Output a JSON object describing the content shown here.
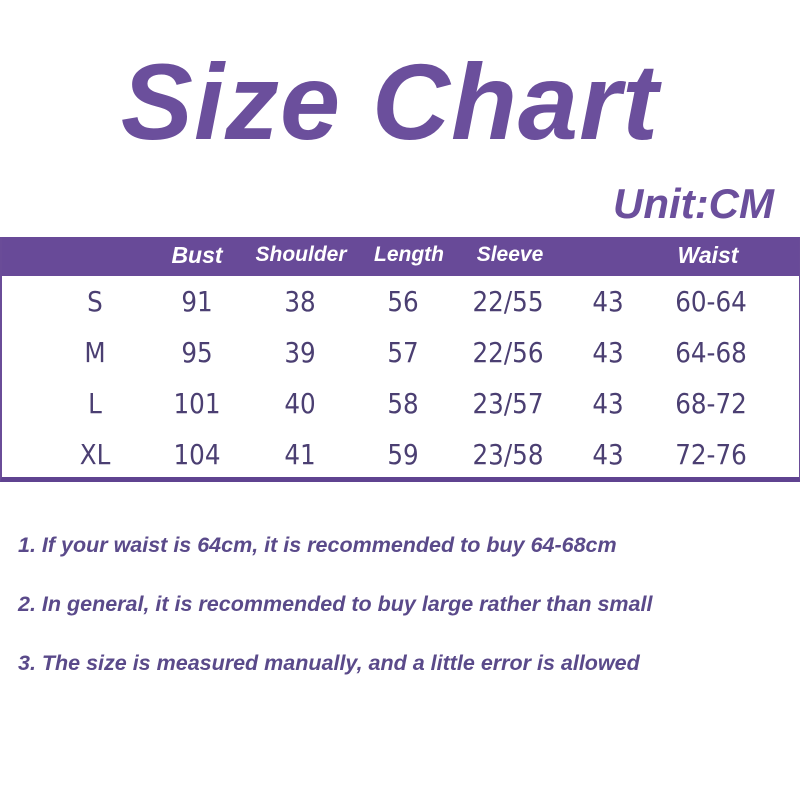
{
  "title": "Size Chart",
  "unit": "Unit:CM",
  "colors": {
    "accent": "#684a98",
    "text": "#4b3f72"
  },
  "table": {
    "headers": [
      "",
      "Bust",
      "Shoulder",
      "Length",
      "Sleeve",
      "",
      "Waist"
    ],
    "rows": [
      [
        "S",
        "91",
        "38",
        "56",
        "22/55",
        "43",
        "60-64"
      ],
      [
        "M",
        "95",
        "39",
        "57",
        "22/56",
        "43",
        "64-68"
      ],
      [
        "L",
        "101",
        "40",
        "58",
        "23/57",
        "43",
        "68-72"
      ],
      [
        "XL",
        "104",
        "41",
        "59",
        "23/58",
        "43",
        "72-76"
      ]
    ]
  },
  "notes": [
    "1. If your waist is 64cm, it is recommended to buy 64-68cm",
    "2. In general, it is recommended to buy large rather than small",
    "3. The size is measured manually, and a little error is allowed"
  ]
}
